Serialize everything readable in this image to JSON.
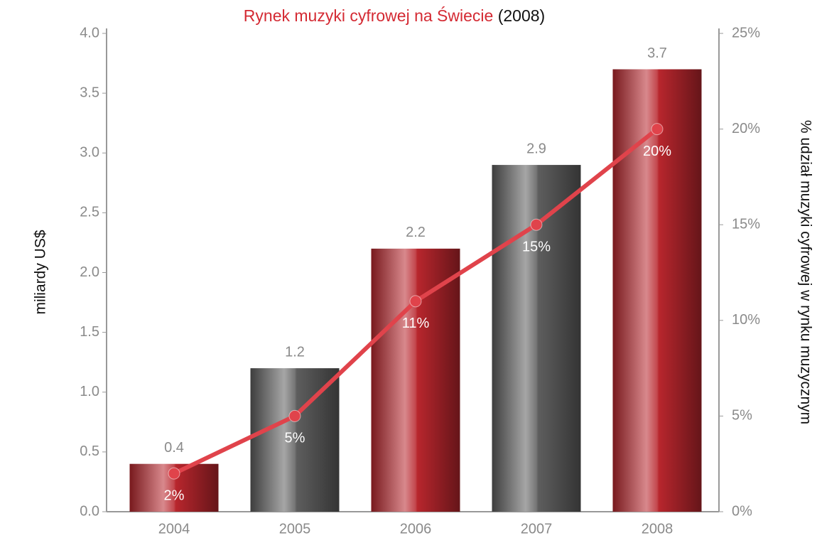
{
  "chart_data": {
    "type": "bar",
    "title": "Rynek muzyki cyfrowej na Świecie",
    "subtitle": "(2008)",
    "ylabel": "miliardy US$",
    "y2label": "% udział muzyki cyfrowej w rynku muzycznym",
    "categories": [
      "2004",
      "2005",
      "2006",
      "2007",
      "2008"
    ],
    "series": [
      {
        "type": "bar",
        "values": [
          0.4,
          1.2,
          2.2,
          2.9,
          3.7
        ],
        "colors": [
          "#b8262d",
          "#5e5e5e",
          "#b8262d",
          "#5e5e5e",
          "#b8262d"
        ]
      },
      {
        "type": "line",
        "axis": "y2",
        "color": "#e0434b",
        "values": [
          2,
          5,
          11,
          15,
          20
        ],
        "value_labels": [
          "2%",
          "5%",
          "11%",
          "15%",
          "20%"
        ]
      }
    ],
    "ylim": [
      0,
      4
    ],
    "yticks": [
      {
        "value": 0,
        "label": "0.0"
      },
      0.5,
      {
        "value": 1,
        "label": "1.0"
      },
      1.5,
      {
        "value": 2,
        "label": "2.0"
      },
      2.5,
      {
        "value": 3,
        "label": "3.0"
      },
      3.5,
      {
        "value": 4,
        "label": "4.0"
      }
    ],
    "y2lim": [
      0,
      25
    ],
    "y2ticks": [
      {
        "value": 0,
        "label": "0%"
      },
      {
        "value": 5,
        "label": "5%"
      },
      {
        "value": 10,
        "label": "10%"
      },
      {
        "value": 15,
        "label": "15%"
      },
      {
        "value": 20,
        "label": "20%"
      },
      {
        "value": 25,
        "label": "25%"
      }
    ]
  }
}
